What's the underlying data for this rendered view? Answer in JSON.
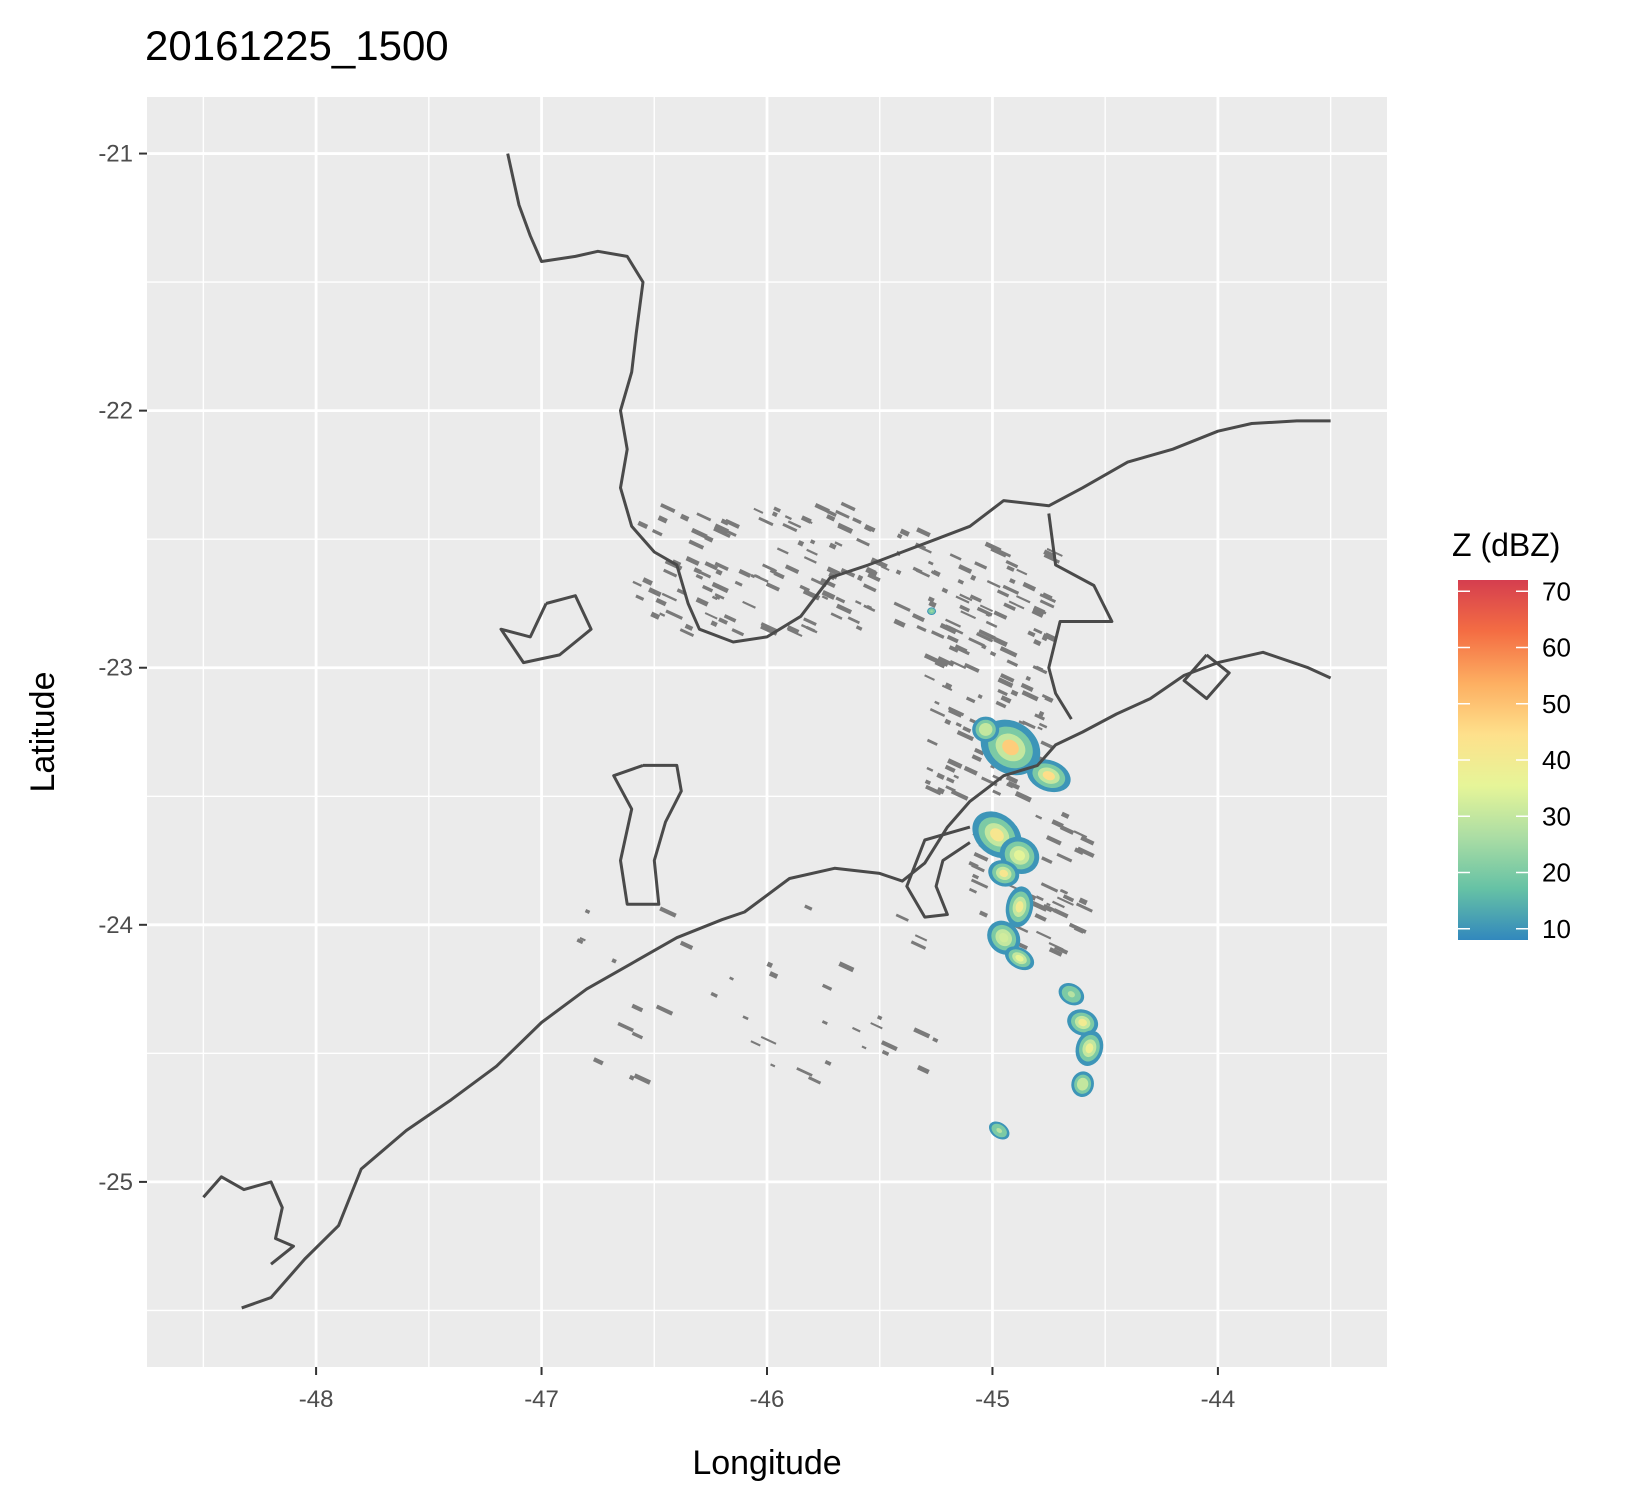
{
  "title": "20161225_1500",
  "axes": {
    "x_label": "Longitude",
    "y_label": "Latitude",
    "x_ticks": [
      {
        "value": -48,
        "label": "-48"
      },
      {
        "value": -47,
        "label": "-47"
      },
      {
        "value": -46,
        "label": "-46"
      },
      {
        "value": -45,
        "label": "-45"
      },
      {
        "value": -44,
        "label": "-44"
      }
    ],
    "y_ticks": [
      {
        "value": -21,
        "label": "-21"
      },
      {
        "value": -22,
        "label": "-22"
      },
      {
        "value": -23,
        "label": "-23"
      },
      {
        "value": -24,
        "label": "-24"
      },
      {
        "value": -25,
        "label": "-25"
      }
    ],
    "xlim": [
      -48.75,
      -43.25
    ],
    "ylim": [
      -25.72,
      -20.78
    ]
  },
  "legend": {
    "title": "Z (dBZ)",
    "range": [
      8,
      72
    ],
    "labels": [
      {
        "value": 70,
        "label": "70"
      },
      {
        "value": 60,
        "label": "60"
      },
      {
        "value": 50,
        "label": "50"
      },
      {
        "value": 40,
        "label": "40"
      },
      {
        "value": 30,
        "label": "30"
      },
      {
        "value": 20,
        "label": "20"
      },
      {
        "value": 10,
        "label": "10"
      }
    ],
    "colors": [
      "#3288bd",
      "#66c2a5",
      "#abdda4",
      "#e6f598",
      "#fee08b",
      "#fdae61",
      "#f46d43",
      "#d53e4f"
    ]
  },
  "colors": {
    "panel": "#ebebeb",
    "grid": "#ffffff",
    "coast": "#4a4a4a",
    "low_echo": "#7a7a7a"
  },
  "map_data": {
    "coastline": [
      [
        -48.33,
        -25.49
      ],
      [
        -48.2,
        -25.45
      ],
      [
        -48.05,
        -25.3
      ],
      [
        -47.9,
        -25.17
      ],
      [
        -47.8,
        -24.95
      ],
      [
        -47.6,
        -24.8
      ],
      [
        -47.4,
        -24.68
      ],
      [
        -47.2,
        -24.55
      ],
      [
        -47.0,
        -24.38
      ],
      [
        -46.8,
        -24.25
      ],
      [
        -46.6,
        -24.15
      ],
      [
        -46.4,
        -24.05
      ],
      [
        -46.2,
        -23.98
      ],
      [
        -46.1,
        -23.95
      ],
      [
        -45.9,
        -23.82
      ],
      [
        -45.7,
        -23.78
      ],
      [
        -45.5,
        -23.8
      ],
      [
        -45.4,
        -23.83
      ],
      [
        -45.3,
        -23.76
      ],
      [
        -45.2,
        -23.62
      ],
      [
        -45.1,
        -23.52
      ],
      [
        -44.95,
        -23.42
      ],
      [
        -44.8,
        -23.38
      ],
      [
        -44.72,
        -23.3
      ],
      [
        -44.6,
        -23.25
      ],
      [
        -44.45,
        -23.18
      ],
      [
        -44.3,
        -23.12
      ],
      [
        -44.15,
        -23.03
      ],
      [
        -44.0,
        -22.98
      ],
      [
        -43.8,
        -22.94
      ],
      [
        -43.6,
        -23.0
      ],
      [
        -43.5,
        -23.04
      ]
    ],
    "borders": [
      [
        [
          -47.15,
          -21.0
        ],
        [
          -47.1,
          -21.2
        ],
        [
          -47.05,
          -21.32
        ],
        [
          -47.0,
          -21.42
        ],
        [
          -46.85,
          -21.4
        ],
        [
          -46.75,
          -21.38
        ],
        [
          -46.62,
          -21.4
        ],
        [
          -46.55,
          -21.5
        ],
        [
          -46.58,
          -21.7
        ],
        [
          -46.6,
          -21.85
        ],
        [
          -46.65,
          -22.0
        ],
        [
          -46.62,
          -22.15
        ],
        [
          -46.65,
          -22.3
        ],
        [
          -46.6,
          -22.45
        ],
        [
          -46.5,
          -22.55
        ],
        [
          -46.4,
          -22.6
        ],
        [
          -46.35,
          -22.75
        ],
        [
          -46.3,
          -22.85
        ],
        [
          -46.15,
          -22.9
        ],
        [
          -46.0,
          -22.88
        ],
        [
          -45.85,
          -22.8
        ],
        [
          -45.72,
          -22.65
        ],
        [
          -45.55,
          -22.6
        ],
        [
          -45.4,
          -22.55
        ],
        [
          -45.25,
          -22.5
        ],
        [
          -45.1,
          -22.45
        ],
        [
          -44.95,
          -22.35
        ],
        [
          -44.75,
          -22.37
        ],
        [
          -44.6,
          -22.3
        ],
        [
          -44.4,
          -22.2
        ],
        [
          -44.2,
          -22.15
        ],
        [
          -44.0,
          -22.08
        ],
        [
          -43.85,
          -22.05
        ],
        [
          -43.65,
          -22.04
        ],
        [
          -43.5,
          -22.04
        ]
      ],
      [
        [
          -44.75,
          -22.4
        ],
        [
          -44.72,
          -22.6
        ],
        [
          -44.55,
          -22.68
        ],
        [
          -44.47,
          -22.82
        ],
        [
          -44.7,
          -22.82
        ],
        [
          -44.75,
          -23.0
        ],
        [
          -44.72,
          -23.1
        ],
        [
          -44.65,
          -23.2
        ]
      ],
      [
        [
          -46.98,
          -22.75
        ],
        [
          -46.85,
          -22.72
        ],
        [
          -46.78,
          -22.85
        ],
        [
          -46.92,
          -22.95
        ],
        [
          -47.08,
          -22.98
        ],
        [
          -47.18,
          -22.85
        ],
        [
          -47.05,
          -22.88
        ],
        [
          -46.98,
          -22.75
        ]
      ],
      [
        [
          -46.55,
          -23.38
        ],
        [
          -46.4,
          -23.38
        ],
        [
          -46.38,
          -23.48
        ],
        [
          -46.45,
          -23.6
        ],
        [
          -46.5,
          -23.75
        ],
        [
          -46.48,
          -23.92
        ],
        [
          -46.62,
          -23.92
        ],
        [
          -46.65,
          -23.75
        ],
        [
          -46.6,
          -23.55
        ],
        [
          -46.68,
          -23.42
        ],
        [
          -46.55,
          -23.38
        ]
      ],
      [
        [
          -44.05,
          -22.95
        ],
        [
          -44.15,
          -23.05
        ],
        [
          -44.05,
          -23.12
        ],
        [
          -43.95,
          -23.02
        ],
        [
          -44.05,
          -22.95
        ]
      ],
      [
        [
          -48.5,
          -25.06
        ],
        [
          -48.42,
          -24.98
        ],
        [
          -48.32,
          -25.03
        ],
        [
          -48.2,
          -25.0
        ],
        [
          -48.15,
          -25.1
        ],
        [
          -48.18,
          -25.22
        ],
        [
          -48.1,
          -25.25
        ],
        [
          -48.2,
          -25.32
        ]
      ],
      [
        [
          -45.1,
          -23.62
        ],
        [
          -45.3,
          -23.67
        ],
        [
          -45.38,
          -23.85
        ],
        [
          -45.3,
          -23.97
        ],
        [
          -45.2,
          -23.96
        ],
        [
          -45.25,
          -23.85
        ],
        [
          -45.22,
          -23.75
        ],
        [
          -45.1,
          -23.68
        ]
      ]
    ],
    "storm_cells": [
      {
        "lon": -44.92,
        "lat": -23.31,
        "rx": 0.14,
        "ry": 0.1,
        "dbz": 48,
        "angle": 35
      },
      {
        "lon": -44.75,
        "lat": -23.42,
        "rx": 0.1,
        "ry": 0.06,
        "dbz": 45,
        "angle": 20
      },
      {
        "lon": -45.03,
        "lat": -23.24,
        "rx": 0.06,
        "ry": 0.05,
        "dbz": 30,
        "angle": 0
      },
      {
        "lon": -44.98,
        "lat": -23.65,
        "rx": 0.12,
        "ry": 0.08,
        "dbz": 42,
        "angle": 40
      },
      {
        "lon": -44.88,
        "lat": -23.73,
        "rx": 0.09,
        "ry": 0.07,
        "dbz": 35,
        "angle": 30
      },
      {
        "lon": -44.95,
        "lat": -23.8,
        "rx": 0.07,
        "ry": 0.05,
        "dbz": 42,
        "angle": 20
      },
      {
        "lon": -44.88,
        "lat": -23.93,
        "rx": 0.06,
        "ry": 0.08,
        "dbz": 40,
        "angle": 10
      },
      {
        "lon": -44.95,
        "lat": -24.05,
        "rx": 0.08,
        "ry": 0.06,
        "dbz": 32,
        "angle": 50
      },
      {
        "lon": -44.88,
        "lat": -24.13,
        "rx": 0.07,
        "ry": 0.04,
        "dbz": 36,
        "angle": 30
      },
      {
        "lon": -44.65,
        "lat": -24.27,
        "rx": 0.06,
        "ry": 0.04,
        "dbz": 28,
        "angle": 30
      },
      {
        "lon": -44.6,
        "lat": -24.38,
        "rx": 0.07,
        "ry": 0.05,
        "dbz": 40,
        "angle": 20
      },
      {
        "lon": -44.57,
        "lat": -24.48,
        "rx": 0.06,
        "ry": 0.07,
        "dbz": 38,
        "angle": 15
      },
      {
        "lon": -44.6,
        "lat": -24.62,
        "rx": 0.05,
        "ry": 0.05,
        "dbz": 30,
        "angle": 10
      },
      {
        "lon": -44.97,
        "lat": -24.8,
        "rx": 0.05,
        "ry": 0.03,
        "dbz": 28,
        "angle": 35
      },
      {
        "lon": -45.27,
        "lat": -22.78,
        "rx": 0.02,
        "ry": 0.015,
        "dbz": 25,
        "angle": 0
      }
    ],
    "clutter_regions": [
      {
        "lon0": -46.6,
        "lon1": -45.3,
        "lat0": -22.85,
        "lat1": -22.35,
        "count": 130
      },
      {
        "lon0": -45.3,
        "lon1": -44.75,
        "lat0": -23.5,
        "lat1": -22.5,
        "count": 150
      },
      {
        "lon0": -46.9,
        "lon1": -45.2,
        "lat0": -24.6,
        "lat1": -23.9,
        "count": 40
      },
      {
        "lon0": -45.15,
        "lon1": -44.6,
        "lat0": -24.1,
        "lat1": -23.55,
        "count": 60
      }
    ]
  }
}
